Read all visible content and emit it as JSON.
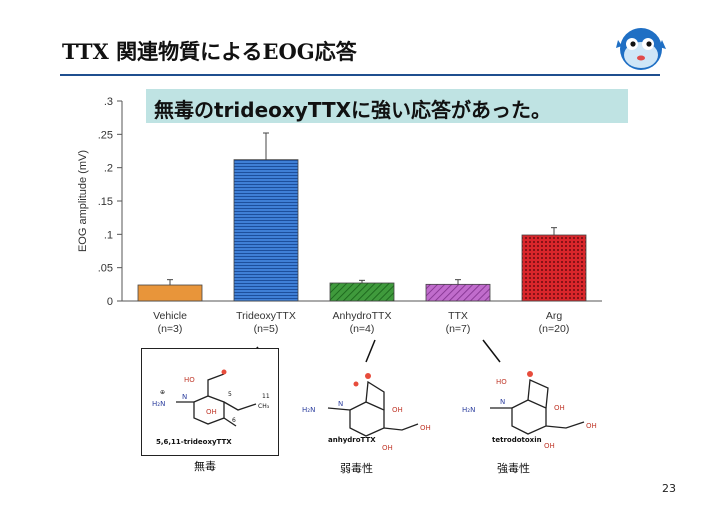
{
  "slide": {
    "title": "TTX 関連物質によるEOG応答",
    "banner": "無毒のtrideoxyTTXに強い応答があった。",
    "page_number": "23"
  },
  "chart_data": {
    "type": "bar",
    "ylabel": "EOG amplitude (mV)",
    "ylim": [
      0,
      0.3
    ],
    "yticks": [
      ".3",
      ".25",
      ".2",
      ".15",
      ".1",
      ".05",
      "0"
    ],
    "categories": [
      {
        "name": "Vehicle",
        "n": "(n=3)"
      },
      {
        "name": "TrideoxyTTX",
        "n": "(n=5)"
      },
      {
        "name": "AnhydroTTX",
        "n": "(n=4)"
      },
      {
        "name": "TTX",
        "n": "(n=7)"
      },
      {
        "name": "Arg",
        "n": "(n=20)"
      }
    ],
    "values": [
      0.024,
      0.212,
      0.027,
      0.025,
      0.099
    ],
    "errors": [
      0.008,
      0.04,
      0.004,
      0.007,
      0.011
    ],
    "colors": [
      "#e8953a",
      "#3f7fd6",
      "#3f9a3c",
      "#b659c2",
      "#d9262b"
    ],
    "grid": false
  },
  "structures": [
    {
      "name": "5,6,11-trideoxyTTX",
      "toxicity": "無毒"
    },
    {
      "name": "anhydroTTX",
      "toxicity": "弱毒性"
    },
    {
      "name": "tetrodotoxin",
      "toxicity": "強毒性"
    }
  ]
}
